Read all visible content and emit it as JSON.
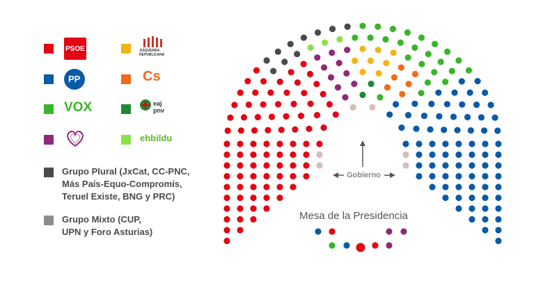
{
  "colors": {
    "psoe": "#e30613",
    "pp": "#0a5aa8",
    "vox": "#38b629",
    "podemos": "#8e2a7a",
    "erc": "#f2b418",
    "cs": "#f26a1b",
    "pnv": "#1e8a36",
    "bildu": "#8ce04a",
    "plural": "#4a4a4a",
    "mixto": "#8c8c8c",
    "gobierno": "#d6bcbc"
  },
  "legend": {
    "psoe_text": "PSOE",
    "pp_text": "PP",
    "vox_text": "VOX",
    "erc_text_1": "ESQUERRA",
    "erc_text_2": "REPUBLICANA",
    "cs_text": "Cs",
    "pnv_text_1": "eaj",
    "pnv_text_2": "pnv",
    "bildu_text": "ehbildu",
    "plural_lines": [
      "Grupo Plural (JxCat, CC-PNC,",
      "Más País-Equo-Compromís,",
      "Teruel Existe, BNG y PRC)"
    ],
    "mixto_lines": [
      "Grupo Mixto (CUP,",
      "UPN y Foro Asturias)"
    ]
  },
  "labels": {
    "gobierno": "Gobierno",
    "mesa": "Mesa de la Presidencia"
  },
  "chart_data": {
    "type": "parliament",
    "seats": [
      {
        "party": "PSOE",
        "count": 120
      },
      {
        "party": "PP",
        "count": 88
      },
      {
        "party": "VOX",
        "count": 52
      },
      {
        "party": "Unidas Podemos",
        "count": 35
      },
      {
        "party": "ERC",
        "count": 13
      },
      {
        "party": "Cs",
        "count": 10
      },
      {
        "party": "EAJ-PNV",
        "count": 6
      },
      {
        "party": "EH Bildu",
        "count": 5
      },
      {
        "party": "Grupo Plural",
        "count": 12
      },
      {
        "party": "Grupo Mixto",
        "count": 4
      }
    ]
  }
}
